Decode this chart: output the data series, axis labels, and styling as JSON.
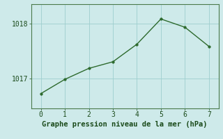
{
  "x": [
    0,
    1,
    2,
    3,
    4,
    5,
    6,
    7
  ],
  "y": [
    1016.72,
    1016.98,
    1017.18,
    1017.3,
    1017.62,
    1018.08,
    1017.93,
    1017.58
  ],
  "line_color": "#2d6a2d",
  "marker": "o",
  "marker_size": 2.5,
  "line_width": 1.0,
  "bg_color": "#ceeaea",
  "grid_color": "#9ecece",
  "xlabel": "Graphe pression niveau de la mer (hPa)",
  "xlabel_fontsize": 7.5,
  "xlabel_color": "#1a4a1a",
  "ytick_labels": [
    "1017",
    "1018"
  ],
  "ylim": [
    1016.45,
    1018.35
  ],
  "xlim": [
    -0.4,
    7.4
  ],
  "xticks": [
    0,
    1,
    2,
    3,
    4,
    5,
    6,
    7
  ],
  "yticks": [
    1017.0,
    1018.0
  ],
  "tick_color": "#1a4a1a",
  "tick_fontsize": 7,
  "spine_color": "#4a7a4a"
}
